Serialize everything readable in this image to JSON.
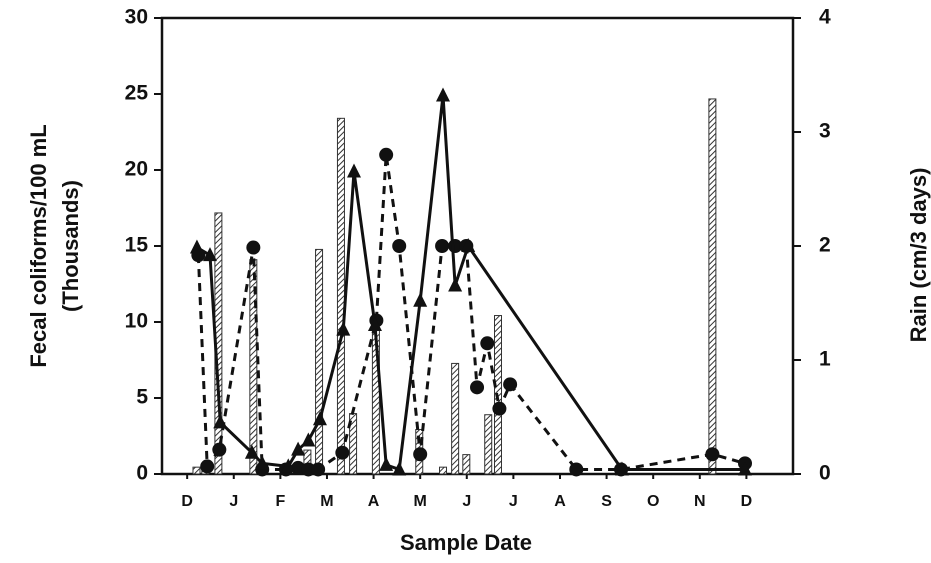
{
  "chart_data": {
    "type": "combo",
    "xlabel": "Sample Date",
    "ylabel": [
      "Fecal coliforms/100 mL",
      "(Thousands)"
    ],
    "y2label": "Rain (cm/3 days)",
    "xlim": [
      -0.54,
      13.0
    ],
    "xticks": [
      {
        "value": 0,
        "label": "D"
      },
      {
        "value": 1,
        "label": "J"
      },
      {
        "value": 2,
        "label": "F"
      },
      {
        "value": 3,
        "label": "M"
      },
      {
        "value": 4,
        "label": "A"
      },
      {
        "value": 5,
        "label": "M"
      },
      {
        "value": 6,
        "label": "J"
      },
      {
        "value": 7,
        "label": "J"
      },
      {
        "value": 8,
        "label": "A"
      },
      {
        "value": 9,
        "label": "S"
      },
      {
        "value": 10,
        "label": "O"
      },
      {
        "value": 11,
        "label": "N"
      },
      {
        "value": 12,
        "label": "D"
      }
    ],
    "ylim": [
      0,
      30
    ],
    "yticks": [
      0,
      5,
      10,
      15,
      20,
      25,
      30
    ],
    "y2lim": [
      0,
      4
    ],
    "y2ticks": [
      0,
      1,
      2,
      3,
      4
    ],
    "series": [
      {
        "kind": "bar",
        "axis": "y2",
        "color": "#333333",
        "x": [
          0.2,
          0.39,
          0.67,
          1.42,
          2.58,
          2.83,
          3.3,
          3.56,
          4.05,
          4.98,
          5.49,
          5.75,
          5.99,
          6.46,
          6.67,
          11.27
        ],
        "values": [
          0.06,
          0.05,
          2.29,
          1.88,
          0.21,
          1.97,
          3.12,
          0.53,
          1.26,
          0.39,
          0.06,
          0.97,
          0.17,
          0.52,
          1.39,
          3.29
        ]
      },
      {
        "kind": "line",
        "dash": true,
        "marker": "circle",
        "color": "#111111",
        "x": [
          0.24,
          0.43,
          0.69,
          1.42,
          1.61,
          2.12,
          2.38,
          2.6,
          2.81,
          3.33,
          4.06,
          4.27,
          4.55,
          5.0,
          5.47,
          5.75,
          5.99,
          6.22,
          6.44,
          6.7,
          6.93,
          8.35,
          9.31,
          11.27,
          11.97
        ],
        "values": [
          14.4,
          0.5,
          1.6,
          14.9,
          0.3,
          0.3,
          0.4,
          0.3,
          0.3,
          1.4,
          10.1,
          21.0,
          15.0,
          1.3,
          15.0,
          15.0,
          15.0,
          5.7,
          8.6,
          4.3,
          5.9,
          0.3,
          0.3,
          1.3,
          0.7
        ]
      },
      {
        "kind": "line",
        "dash": false,
        "marker": "triangle",
        "color": "#111111",
        "x": [
          0.21,
          0.49,
          0.71,
          1.39,
          1.61,
          2.17,
          2.38,
          2.6,
          2.85,
          3.35,
          3.58,
          4.03,
          4.27,
          4.55,
          5.0,
          5.49,
          5.75,
          6.03,
          9.33,
          11.97
        ],
        "values": [
          14.9,
          14.4,
          3.4,
          1.4,
          0.7,
          0.5,
          1.6,
          2.2,
          3.6,
          9.5,
          19.9,
          9.8,
          0.6,
          0.3,
          11.4,
          24.9,
          12.4,
          15.0,
          0.3,
          0.3
        ]
      }
    ]
  }
}
